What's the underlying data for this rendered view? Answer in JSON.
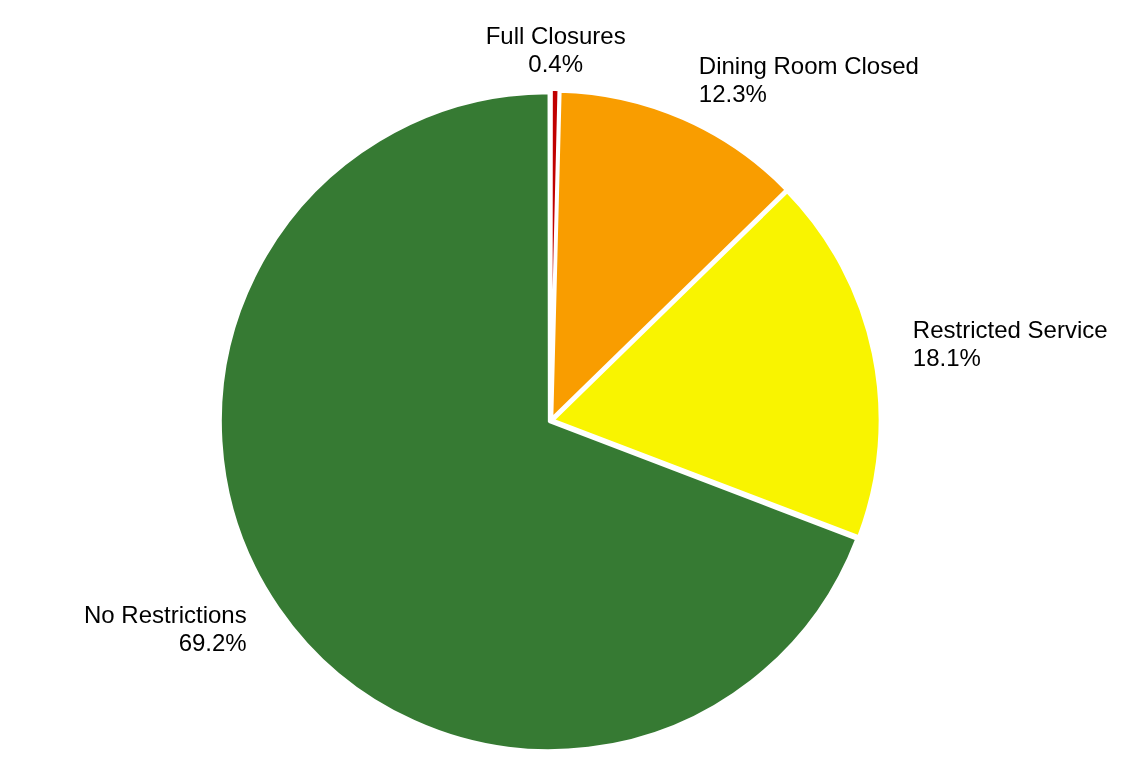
{
  "chart_data": {
    "type": "pie",
    "categories": [
      "Full Closures",
      "Dining Room Closed",
      "Restricted Service",
      "No Restrictions"
    ],
    "values": [
      0.4,
      12.3,
      18.1,
      69.2
    ],
    "colors": [
      "#c00000",
      "#f99d00",
      "#f9f400",
      "#367a33"
    ],
    "value_labels": [
      "0.4%",
      "12.3%",
      "18.1%",
      "69.2%"
    ],
    "legend": false
  }
}
